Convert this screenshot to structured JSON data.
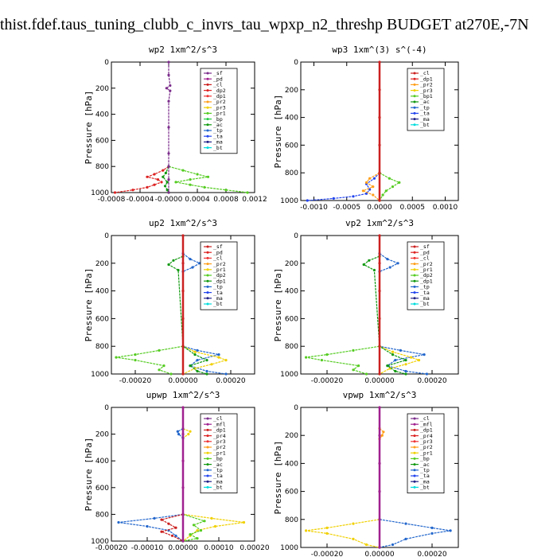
{
  "page": {
    "title": "thist.fdef.taus_tuning_clubb_c_invrs_tau_wpxp_n2_threshp  BUDGET at270E,-7N"
  },
  "chart_data": [
    {
      "type": "line",
      "title": "wp2  1xm^2/s^3",
      "ylabel": "Pressure [hPa]",
      "xlim": [
        -0.0008,
        0.0012
      ],
      "ylim": [
        1000,
        0
      ],
      "xticks": [
        -0.0008,
        -0.0004,
        0.0,
        0.0004,
        0.0008,
        0.0012
      ],
      "xtick_labels": [
        "-0.0008",
        "-0.0004",
        "-0.0000",
        "0.0004",
        "0.0008",
        "0.0012"
      ],
      "yticks": [
        0,
        200,
        400,
        600,
        800,
        1000
      ],
      "legend": [
        "_sf",
        "_pd",
        "_cl",
        "_dp2",
        "_dp1",
        "_pr2",
        "_pr3",
        "_pr1",
        "_bp",
        "_ac",
        "_tp",
        "_ta",
        "_ma",
        "_bt"
      ],
      "legend_colors": [
        "#7b2d8b",
        "#a0208f",
        "#cc2020",
        "#dd2222",
        "#ee3333",
        "#ff9f1a",
        "#f0d000",
        "#55cc22",
        "#22cc44",
        "#119911",
        "#2266cc",
        "#2244ee",
        "#222288",
        "#00dddd"
      ],
      "series": [
        {
          "name": "_dp1",
          "color": "#dd2222",
          "y": [
            800,
            830,
            860,
            880,
            900,
            920,
            940,
            960,
            980,
            1000
          ],
          "x": [
            0,
            -8e-05,
            -0.0002,
            -0.0003,
            -0.00015,
            -0.0001,
            -0.0002,
            -0.0003,
            -0.0005,
            -0.00075
          ]
        },
        {
          "name": "_pr1",
          "color": "#55cc22",
          "y": [
            800,
            830,
            860,
            880,
            900,
            920,
            940,
            960,
            980,
            1000
          ],
          "x": [
            0,
            0.0002,
            0.0004,
            0.00055,
            0.0003,
            0.0001,
            0.0003,
            0.0005,
            0.0008,
            0.0011
          ]
        },
        {
          "name": "_dp2",
          "color": "#119911",
          "y": [
            800,
            850,
            880,
            920,
            950,
            980,
            1000
          ],
          "x": [
            0,
            -4e-05,
            -8e-05,
            -2e-05,
            -5e-05,
            -2e-05,
            0
          ]
        },
        {
          "name": "_bt",
          "color": "#7b2d8b",
          "y": [
            0,
            100,
            180,
            200,
            220,
            300,
            500,
            700,
            800,
            900,
            1000
          ],
          "x": [
            0,
            0,
            2e-05,
            -3e-05,
            2e-05,
            0,
            0,
            0,
            0,
            0,
            0
          ]
        }
      ]
    },
    {
      "type": "line",
      "title": "wp3  1xm^(3) s^(-4)",
      "ylabel": "Pressure [hPa]",
      "xlim": [
        -0.0012,
        0.0012
      ],
      "ylim": [
        1000,
        0
      ],
      "xticks": [
        -0.001,
        -0.0005,
        0.0,
        0.0005,
        0.001
      ],
      "xtick_labels": [
        "-0.0010",
        "-0.0005",
        "0.0000",
        "0.0005",
        "0.0010"
      ],
      "yticks": [
        0,
        200,
        400,
        600,
        800,
        1000
      ],
      "legend": [
        "_cl",
        "_dp1",
        "_pr2",
        "_pr3",
        "_bp1",
        "_ac",
        "_tp",
        "_ta",
        "_ma",
        "_bt"
      ],
      "legend_colors": [
        "#cc2020",
        "#dd2222",
        "#ff9f1a",
        "#f0d000",
        "#55cc22",
        "#119911",
        "#2266cc",
        "#2244ee",
        "#222288",
        "#00dddd"
      ],
      "series": [
        {
          "name": "_ta",
          "color": "#2244ee",
          "y": [
            800,
            840,
            880,
            920,
            950,
            970,
            985,
            1000
          ],
          "x": [
            0,
            -8e-05,
            -0.0002,
            -0.00015,
            -0.0002,
            -0.0004,
            -0.0007,
            -0.0011
          ]
        },
        {
          "name": "_pr1",
          "color": "#55cc22",
          "y": [
            800,
            840,
            870,
            900,
            930,
            960,
            1000
          ],
          "x": [
            0,
            0.00015,
            0.0003,
            0.0002,
            0.0001,
            5e-05,
            0
          ]
        },
        {
          "name": "_pr2",
          "color": "#ff9f1a",
          "y": [
            800,
            840,
            870,
            900,
            930,
            960,
            1000
          ],
          "x": [
            0,
            -0.00015,
            -0.0002,
            -0.0001,
            -0.00025,
            -0.0001,
            0
          ]
        },
        {
          "name": "_cl",
          "color": "#cc2020",
          "y": [
            0,
            200,
            400,
            600,
            800,
            1000
          ],
          "x": [
            0,
            0,
            0,
            0,
            0,
            0
          ]
        }
      ]
    },
    {
      "type": "line",
      "title": "up2  1xm^2/s^3",
      "ylabel": "Pressure [hPa]",
      "xlim": [
        -0.0003,
        0.0003
      ],
      "ylim": [
        1000,
        0
      ],
      "xticks": [
        -0.0002,
        0.0,
        0.0002
      ],
      "xtick_labels": [
        "-0.00020",
        "0.00000",
        "0.00020"
      ],
      "yticks": [
        0,
        200,
        400,
        600,
        800,
        1000
      ],
      "legend": [
        "_sf",
        "_pd",
        "_cl",
        "_pr2",
        "_pr1",
        "_dp2",
        "_dp1",
        "_tp",
        "_ta",
        "_ma",
        "_bt"
      ],
      "legend_colors": [
        "#cc2020",
        "#dd2222",
        "#ee3333",
        "#ff9f1a",
        "#f0d000",
        "#55cc22",
        "#119911",
        "#2266cc",
        "#2244ee",
        "#222288",
        "#00dddd"
      ],
      "series": [
        {
          "name": "_dp2",
          "color": "#55cc22",
          "y": [
            800,
            830,
            860,
            880,
            900,
            940,
            970,
            1000
          ],
          "x": [
            0,
            -0.0001,
            -0.0002,
            -0.00028,
            -0.0002,
            -8e-05,
            -0.0001,
            -5e-05
          ]
        },
        {
          "name": "_tp",
          "color": "#2266cc",
          "y": [
            130,
            170,
            200,
            230,
            260,
            800,
            830,
            860,
            900,
            940,
            980,
            1000
          ],
          "x": [
            0,
            3e-05,
            7e-05,
            4e-05,
            0,
            0,
            6e-05,
            0.00015,
            6e-05,
            3e-05,
            0.0001,
            0.00018
          ]
        },
        {
          "name": "_pr1",
          "color": "#f0d000",
          "y": [
            800,
            840,
            880,
            900,
            930,
            960,
            1000
          ],
          "x": [
            0,
            5e-05,
            0.00015,
            0.00018,
            0.00012,
            5e-05,
            0
          ]
        },
        {
          "name": "_dp1",
          "color": "#119911",
          "y": [
            150,
            180,
            210,
            250,
            800,
            860,
            900,
            940,
            980,
            1000
          ],
          "x": [
            0,
            -4e-05,
            -6e-05,
            -2e-05,
            0,
            5e-05,
            0.0001,
            3e-05,
            6e-05,
            0.0001
          ]
        },
        {
          "name": "_cl",
          "color": "#cc2020",
          "y": [
            0,
            200,
            400,
            600,
            800,
            1000
          ],
          "x": [
            0,
            0,
            0,
            0,
            0,
            0
          ]
        }
      ]
    },
    {
      "type": "line",
      "title": "vp2  1xm^2/s^3",
      "ylabel": "Pressure [hPa]",
      "xlim": [
        -0.0003,
        0.0003
      ],
      "ylim": [
        1000,
        0
      ],
      "xticks": [
        -0.0002,
        0.0,
        0.0002
      ],
      "xtick_labels": [
        "-0.00020",
        "0.00000",
        "0.00020"
      ],
      "yticks": [
        0,
        200,
        400,
        600,
        800,
        1000
      ],
      "legend": [
        "_sf",
        "_pd",
        "_cl",
        "_pr2",
        "_pr1",
        "_dp2",
        "_dp1",
        "_tp",
        "_ta",
        "_ma",
        "_bt"
      ],
      "legend_colors": [
        "#cc2020",
        "#dd2222",
        "#ee3333",
        "#ff9f1a",
        "#f0d000",
        "#55cc22",
        "#119911",
        "#2266cc",
        "#2244ee",
        "#222288",
        "#00dddd"
      ],
      "series": [
        {
          "name": "_dp2",
          "color": "#55cc22",
          "y": [
            800,
            830,
            860,
            880,
            900,
            940,
            970,
            1000
          ],
          "x": [
            0,
            -0.0001,
            -0.0002,
            -0.00028,
            -0.00022,
            -8e-05,
            -0.0001,
            -5e-05
          ]
        },
        {
          "name": "_tp",
          "color": "#2266cc",
          "y": [
            130,
            170,
            200,
            230,
            260,
            800,
            830,
            860,
            900,
            940,
            980,
            1000
          ],
          "x": [
            0,
            3e-05,
            7e-05,
            4e-05,
            0,
            0,
            8e-05,
            0.00017,
            6e-05,
            3e-05,
            0.0001,
            0.00018
          ]
        },
        {
          "name": "_pr1",
          "color": "#f0d000",
          "y": [
            800,
            840,
            880,
            900,
            930,
            960,
            1000
          ],
          "x": [
            0,
            5e-05,
            0.00012,
            0.00015,
            0.0001,
            4e-05,
            0
          ]
        },
        {
          "name": "_dp1",
          "color": "#119911",
          "y": [
            150,
            180,
            210,
            250,
            800,
            860,
            900,
            940,
            980,
            1000
          ],
          "x": [
            0,
            -4e-05,
            -6e-05,
            -2e-05,
            0,
            5e-05,
            0.0001,
            3e-05,
            6e-05,
            0.0001
          ]
        },
        {
          "name": "_cl",
          "color": "#cc2020",
          "y": [
            0,
            200,
            400,
            600,
            800,
            1000
          ],
          "x": [
            0,
            0,
            0,
            0,
            0,
            0
          ]
        }
      ]
    },
    {
      "type": "line",
      "title": "upwp  1xm^2/s^3",
      "ylabel": "Pressure [hPa]",
      "xlim": [
        -0.0002,
        0.0002
      ],
      "ylim": [
        1000,
        0
      ],
      "xticks": [
        -0.0002,
        -0.0001,
        0.0,
        0.0001,
        0.0002
      ],
      "xtick_labels": [
        "-0.00020",
        "-0.00010",
        "0.00000",
        "0.00010",
        "0.00020"
      ],
      "yticks": [
        0,
        200,
        400,
        600,
        800,
        1000
      ],
      "legend": [
        "_cl",
        "_mfl",
        "_dp1",
        "_pr4",
        "_pr3",
        "_pr2",
        "_pr1",
        "_bp",
        "_ac",
        "_tp",
        "_ta",
        "_ma",
        "_bt"
      ],
      "legend_colors": [
        "#7b2d8b",
        "#a0208f",
        "#cc2020",
        "#dd2222",
        "#ee3333",
        "#ff9f1a",
        "#f0d000",
        "#55cc22",
        "#119911",
        "#2266cc",
        "#2244ee",
        "#222288",
        "#00dddd"
      ],
      "series": [
        {
          "name": "_ac",
          "color": "#2266cc",
          "y": [
            800,
            830,
            860,
            890,
            920,
            960,
            1000
          ],
          "x": [
            0,
            -8e-05,
            -0.00018,
            -0.0001,
            -4e-05,
            -2e-05,
            0
          ]
        },
        {
          "name": "_pr1",
          "color": "#f0d000",
          "y": [
            160,
            180,
            200,
            230,
            800,
            830,
            860,
            890,
            920,
            960,
            1000
          ],
          "x": [
            0,
            2e-05,
            1.5e-05,
            0,
            0,
            8e-05,
            0.00017,
            9e-05,
            4e-05,
            2e-05,
            0
          ]
        },
        {
          "name": "_dp1",
          "color": "#cc2020",
          "y": [
            800,
            840,
            870,
            900,
            930,
            960,
            1000
          ],
          "x": [
            0,
            -6e-05,
            -4e-05,
            -2e-05,
            -6e-05,
            -3e-05,
            0
          ]
        },
        {
          "name": "_bp",
          "color": "#55cc22",
          "y": [
            800,
            850,
            880,
            920,
            950,
            980,
            1000
          ],
          "x": [
            0,
            6e-05,
            3e-05,
            5e-05,
            2e-05,
            4e-05,
            0
          ]
        },
        {
          "name": "_tp",
          "color": "#2266cc",
          "y": [
            160,
            180,
            200,
            230
          ],
          "x": [
            0,
            -1.5e-05,
            -1.2e-05,
            0
          ]
        },
        {
          "name": "_mfl",
          "color": "#a0208f",
          "y": [
            0,
            200,
            400,
            600,
            800,
            1000
          ],
          "x": [
            0,
            0,
            0,
            0,
            0,
            0
          ]
        }
      ]
    },
    {
      "type": "line",
      "title": "vpwp  1xm^2/s^3",
      "ylabel": "Pressure [hPa]",
      "xlim": [
        -0.0003,
        0.0003
      ],
      "ylim": [
        1000,
        0
      ],
      "xticks": [
        -0.0002,
        0.0,
        0.0002
      ],
      "xtick_labels": [
        "-0.00020",
        "0.00000",
        "0.00020"
      ],
      "yticks": [
        0,
        200,
        400,
        600,
        800,
        1000
      ],
      "legend": [
        "_cl",
        "_mfl",
        "_dp1",
        "_pr4",
        "_pr3",
        "_pr2",
        "_pr1",
        "_bp",
        "_ac",
        "_tp",
        "_ta",
        "_ma",
        "_bt"
      ],
      "legend_colors": [
        "#7b2d8b",
        "#a0208f",
        "#cc2020",
        "#dd2222",
        "#ee3333",
        "#ff9f1a",
        "#f0d000",
        "#55cc22",
        "#119911",
        "#2266cc",
        "#2244ee",
        "#222288",
        "#00dddd"
      ],
      "series": [
        {
          "name": "_pr1",
          "color": "#f0d000",
          "y": [
            800,
            830,
            860,
            880,
            900,
            940,
            980,
            1000
          ],
          "x": [
            0,
            -0.0001,
            -0.0002,
            -0.00028,
            -0.0002,
            -0.0001,
            -5e-05,
            0
          ]
        },
        {
          "name": "_ac",
          "color": "#2266cc",
          "y": [
            800,
            830,
            860,
            880,
            900,
            940,
            980,
            1000
          ],
          "x": [
            0,
            0.0001,
            0.0002,
            0.00027,
            0.0002,
            0.0001,
            5e-05,
            0
          ]
        },
        {
          "name": "_pr2",
          "color": "#ff9f1a",
          "y": [
            150,
            175,
            200,
            225
          ],
          "x": [
            0,
            1.5e-05,
            1e-05,
            0
          ]
        },
        {
          "name": "_mfl",
          "color": "#a0208f",
          "y": [
            0,
            200,
            400,
            600,
            800,
            1000
          ],
          "x": [
            0,
            0,
            0,
            0,
            0,
            0
          ]
        }
      ]
    }
  ]
}
